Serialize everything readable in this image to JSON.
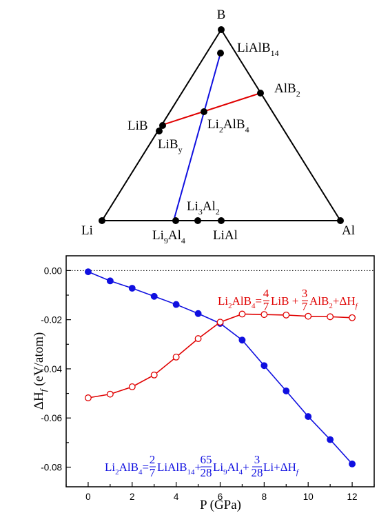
{
  "ternary": {
    "vertices": {
      "top": "B",
      "left": "Li",
      "right": "Al"
    },
    "phases": [
      {
        "name": "LiAlB",
        "sub": "14"
      },
      {
        "name": "AlB",
        "sub": "2"
      },
      {
        "name": "LiB",
        "sub": ""
      },
      {
        "name": "LiB",
        "sub": "y"
      },
      {
        "name": "Li",
        "sub": "2",
        "name2": "AlB",
        "sub2": "4"
      },
      {
        "name": "Li",
        "sub": "3",
        "name2": "Al",
        "sub2": "2"
      },
      {
        "name": "Li",
        "sub": "9",
        "name2": "Al",
        "sub2": "4"
      },
      {
        "name": "LiAl",
        "sub": ""
      }
    ],
    "tie_line_colors": {
      "red": "#e00000",
      "blue": "#1010e0"
    }
  },
  "chart_data": {
    "type": "line",
    "xlabel": "P (GPa)",
    "ylabel": "ΔH_f (eV/atom)",
    "xlim": [
      -1,
      13
    ],
    "ylim": [
      -0.088,
      0.006
    ],
    "xticks": [
      0,
      2,
      4,
      6,
      8,
      10,
      12
    ],
    "yticks": [
      0.0,
      -0.02,
      -0.04,
      -0.06,
      -0.08
    ],
    "x": [
      0,
      1,
      2,
      3,
      4,
      5,
      6,
      7,
      8,
      9,
      10,
      11,
      12
    ],
    "series": [
      {
        "color": "#1010e0",
        "marker": "filled-circle",
        "values": [
          -0.0005,
          -0.0042,
          -0.0072,
          -0.0105,
          -0.0138,
          -0.0175,
          -0.0215,
          -0.0283,
          -0.0387,
          -0.049,
          -0.0594,
          -0.0688,
          -0.0787
        ]
      },
      {
        "color": "#e00000",
        "marker": "open-circle",
        "values": [
          -0.0518,
          -0.0503,
          -0.0473,
          -0.0425,
          -0.0352,
          -0.0277,
          -0.021,
          -0.0177,
          -0.0179,
          -0.0181,
          -0.0186,
          -0.0188,
          -0.0192
        ]
      }
    ],
    "zero_line": "dotted",
    "annotations": {
      "red_equation": "Li2AlB4 = 4/7 LiB + 3/7 AlB2 + ΔHf",
      "blue_equation": "Li2AlB4 = 2/7 LiAlB14 + 65/28 Li9Al4 + 3/28 Li + ΔHf"
    }
  }
}
